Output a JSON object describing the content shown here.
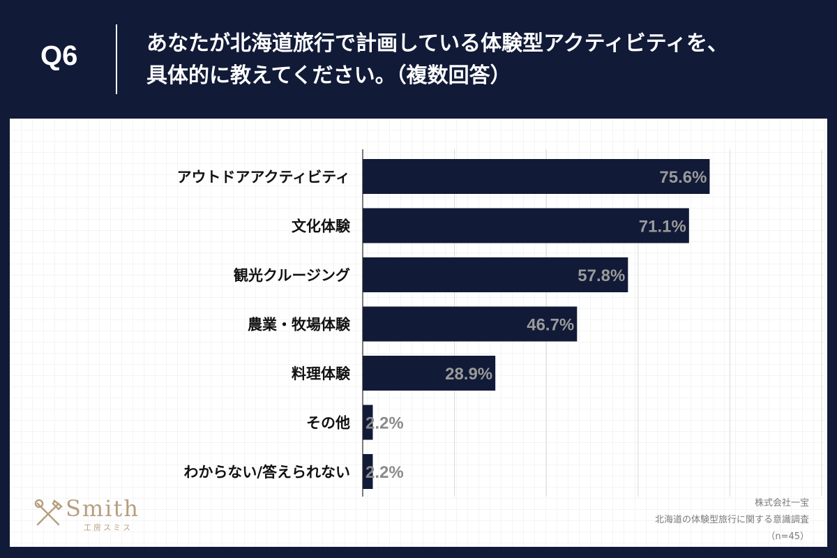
{
  "header": {
    "question_number": "Q6",
    "title_lines": [
      "あなたが北海道旅行で計画している体験型アクティビティを、",
      "具体的に教えてください。（複数回答）"
    ]
  },
  "colors": {
    "background": "#111a37",
    "bar": "#111a37",
    "bar_label_inside": "#9a9a9a",
    "bar_label_outside": "#8a8a8a",
    "logo": "#b79f80"
  },
  "chart_data": {
    "type": "bar",
    "orientation": "horizontal",
    "title": "",
    "xlabel": "",
    "ylabel": "",
    "xlim": [
      0,
      100
    ],
    "grid": true,
    "categories": [
      "アウトドアアクティビティ",
      "文化体験",
      "観光クルージング",
      "農業・牧場体験",
      "料理体験",
      "その他",
      "わからない/答えられない"
    ],
    "values": [
      75.6,
      71.1,
      57.8,
      46.7,
      28.9,
      2.2,
      2.2
    ],
    "value_labels": [
      "75.6%",
      "71.1%",
      "57.8%",
      "46.7%",
      "28.9%",
      "2.2%",
      "2.2%"
    ]
  },
  "logo": {
    "wordmark": "Smith",
    "subtitle": "工房スミス"
  },
  "source": {
    "company": "株式会社一宝",
    "survey": "北海道の体験型旅行に関する意識調査",
    "sample": "（n=45）"
  }
}
